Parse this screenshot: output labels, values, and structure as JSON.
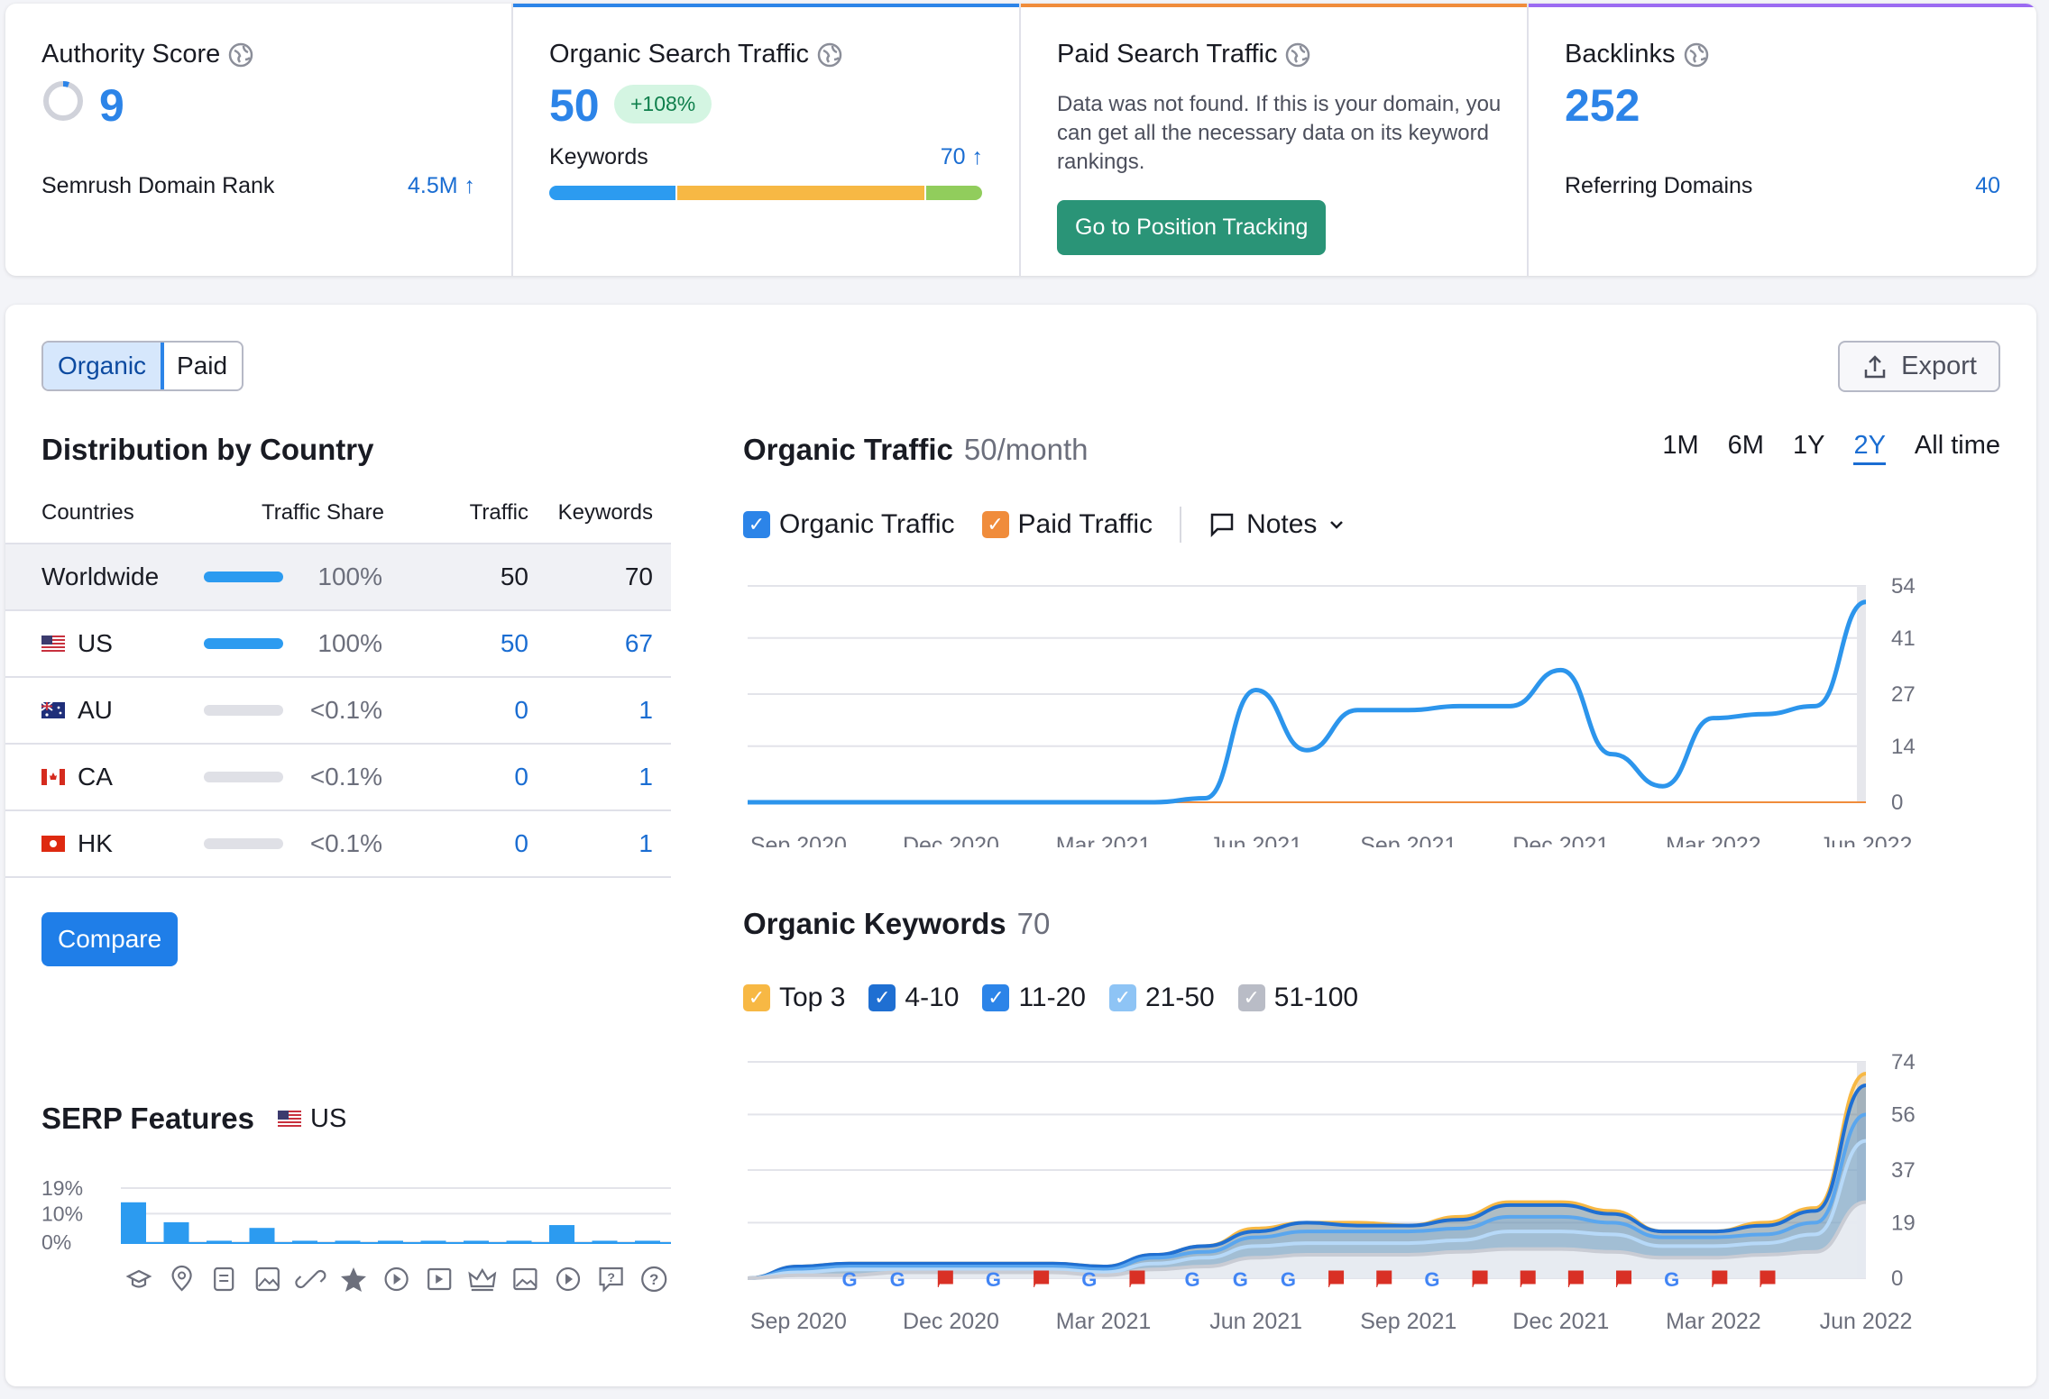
{
  "authority": {
    "title": "Authority Score",
    "value": "9",
    "row_label": "Semrush Domain Rank",
    "row_value": "4.5M ↑"
  },
  "organic": {
    "title": "Organic Search Traffic",
    "value": "50",
    "change": "+108%",
    "kw_label": "Keywords",
    "kw_value": "70 ↑"
  },
  "paid": {
    "title": "Paid Search Traffic",
    "desc": "Data was not found. If this is your domain, you can get all the necessary data on its keyword rankings.",
    "button": "Go to Position Tracking"
  },
  "backlinks": {
    "title": "Backlinks",
    "value": "252",
    "row_label": "Referring Domains",
    "row_value": "40"
  },
  "tabs": {
    "organic": "Organic",
    "paid": "Paid",
    "export": "Export"
  },
  "distribution": {
    "title": "Distribution by Country",
    "headers": [
      "Countries",
      "Traffic Share",
      "Traffic",
      "Keywords"
    ],
    "rows": [
      {
        "country": "Worldwide",
        "share": "100%",
        "share_frac": 1.0,
        "traffic": "50",
        "keywords": "70"
      },
      {
        "country": "US",
        "share": "100%",
        "share_frac": 1.0,
        "traffic": "50",
        "keywords": "67"
      },
      {
        "country": "AU",
        "share": "<0.1%",
        "share_frac": 0.0,
        "traffic": "0",
        "keywords": "1"
      },
      {
        "country": "CA",
        "share": "<0.1%",
        "share_frac": 0.0,
        "traffic": "0",
        "keywords": "1"
      },
      {
        "country": "HK",
        "share": "<0.1%",
        "share_frac": 0.0,
        "traffic": "0",
        "keywords": "1"
      }
    ],
    "compare": "Compare"
  },
  "serp": {
    "title": "SERP Features",
    "country": "US"
  },
  "traffic_chart": {
    "title": "Organic Traffic",
    "subtitle": "50/month",
    "periods": [
      "1M",
      "6M",
      "1Y",
      "2Y",
      "All time"
    ],
    "legend_organic": "Organic Traffic",
    "legend_paid": "Paid Traffic",
    "notes": "Notes"
  },
  "keywords_chart": {
    "title": "Organic Keywords",
    "subtitle": "70",
    "legend": [
      "Top 3",
      "4-10",
      "11-20",
      "21-50",
      "51-100"
    ]
  },
  "colors": {
    "accent_blue": "#2c84e8",
    "orange": "#f08c3b",
    "purple": "#9b6bf2",
    "green_button": "#2a9477"
  },
  "chart_data": [
    {
      "type": "line",
      "title": "Organic Traffic",
      "x": [
        "Aug 2020",
        "Sep 2020",
        "Oct 2020",
        "Nov 2020",
        "Dec 2020",
        "Jan 2021",
        "Feb 2021",
        "Mar 2021",
        "Apr 2021",
        "May 2021",
        "Jun 2021",
        "Jul 2021",
        "Aug 2021",
        "Sep 2021",
        "Oct 2021",
        "Nov 2021",
        "Dec 2021",
        "Jan 2022",
        "Feb 2022",
        "Mar 2022",
        "Apr 2022",
        "May 2022",
        "Jun 2022"
      ],
      "xticks": [
        "Sep 2020",
        "Dec 2020",
        "Mar 2021",
        "Jun 2021",
        "Sep 2021",
        "Dec 2021",
        "Mar 2022",
        "Jun 2022"
      ],
      "yticks": [
        0,
        14,
        27,
        41,
        54
      ],
      "ylim": [
        0,
        54
      ],
      "series": [
        {
          "name": "Organic Traffic",
          "values": [
            0,
            0,
            0,
            0,
            0,
            0,
            0,
            0,
            0,
            1,
            28,
            13,
            23,
            23,
            24,
            24,
            33,
            12,
            4,
            21,
            22,
            24,
            50
          ]
        },
        {
          "name": "Paid Traffic",
          "values": [
            0,
            0,
            0,
            0,
            0,
            0,
            0,
            0,
            0,
            0,
            0,
            0,
            0,
            0,
            0,
            0,
            0,
            0,
            0,
            0,
            0,
            0,
            0
          ]
        }
      ]
    },
    {
      "type": "area",
      "title": "Organic Keywords",
      "x": [
        "Aug 2020",
        "Sep 2020",
        "Oct 2020",
        "Nov 2020",
        "Dec 2020",
        "Jan 2021",
        "Feb 2021",
        "Mar 2021",
        "Apr 2021",
        "May 2021",
        "Jun 2021",
        "Jul 2021",
        "Aug 2021",
        "Sep 2021",
        "Oct 2021",
        "Nov 2021",
        "Dec 2021",
        "Jan 2022",
        "Feb 2022",
        "Mar 2022",
        "Apr 2022",
        "May 2022",
        "Jun 2022"
      ],
      "xticks": [
        "Sep 2020",
        "Dec 2020",
        "Mar 2021",
        "Jun 2021",
        "Sep 2021",
        "Dec 2021",
        "Mar 2022",
        "Jun 2022"
      ],
      "yticks": [
        0,
        19,
        37,
        56,
        74
      ],
      "ylim": [
        0,
        74
      ],
      "series": [
        {
          "name": "Top 3",
          "values": [
            0,
            4,
            5,
            5,
            5,
            5,
            5,
            4,
            8,
            11,
            17,
            19,
            19,
            18,
            21,
            26,
            26,
            23,
            16,
            16,
            19,
            24,
            70
          ]
        },
        {
          "name": "4-10",
          "values": [
            0,
            4,
            5,
            5,
            5,
            5,
            5,
            4,
            8,
            11,
            16,
            19,
            18,
            18,
            20,
            25,
            25,
            22,
            16,
            16,
            18,
            23,
            66
          ]
        },
        {
          "name": "11-20",
          "values": [
            0,
            3,
            4,
            4,
            4,
            4,
            4,
            3,
            7,
            9,
            14,
            16,
            16,
            16,
            17,
            21,
            21,
            19,
            14,
            14,
            15,
            19,
            56
          ]
        },
        {
          "name": "21-50",
          "values": [
            0,
            2,
            3,
            3,
            3,
            3,
            3,
            2,
            5,
            7,
            11,
            12,
            12,
            12,
            13,
            16,
            16,
            15,
            11,
            11,
            12,
            15,
            47
          ]
        },
        {
          "name": "51-100",
          "values": [
            0,
            1,
            1,
            2,
            2,
            2,
            2,
            1,
            3,
            4,
            7,
            8,
            8,
            8,
            9,
            10,
            10,
            9,
            7,
            7,
            8,
            9,
            26
          ]
        }
      ]
    },
    {
      "type": "bar",
      "title": "SERP Features",
      "yticks": [
        "19%",
        "10%",
        "0%"
      ],
      "ylim": [
        0,
        19
      ],
      "values": [
        14,
        7,
        0.5,
        5,
        0.5,
        0.5,
        0.5,
        0.5,
        0.5,
        0.5,
        6,
        0.5,
        0.5,
        0.5
      ]
    }
  ]
}
